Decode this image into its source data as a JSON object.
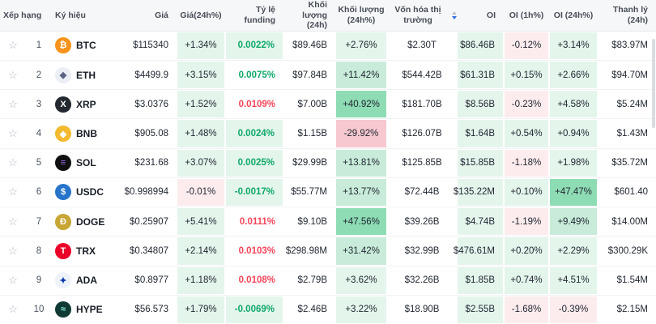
{
  "header": {
    "columns": [
      "Xếp hạng",
      "Ký hiệu",
      "Giá",
      "Giá(24h%)",
      "Tỷ lệ funding",
      "Khối lượng (24h)",
      "Khối lượng (24h%)",
      "Vốn hóa thị trường",
      "OI",
      "OI (1h%)",
      "OI (24h%)",
      "Thanh lý (24h)"
    ],
    "sorted_column": "Vốn hóa thị trường",
    "sort_direction": "desc"
  },
  "icons": {
    "favorite_star": "☆"
  },
  "colors": {
    "green_text": "#0fa968",
    "red_text": "#f4455a",
    "bg_g1": "#e4f5ec",
    "bg_g2": "#c8ecd9",
    "bg_g3": "#8edcb4",
    "bg_r1": "#fdecee",
    "bg_r2": "#f7c8cf",
    "sort_accent": "#2f6fed"
  },
  "rows": [
    {
      "rank": "1",
      "symbol": "BTC",
      "icon": {
        "glyph": "₿",
        "bg": "#f7931a",
        "fg": "#ffffff"
      },
      "cells": {
        "price": {
          "v": "$115340"
        },
        "price_24h": {
          "v": "+1.34%",
          "bg": "g1"
        },
        "funding": {
          "v": "0.0022%",
          "fg": "green",
          "bg": "g1"
        },
        "vol_24h": {
          "v": "$89.46B"
        },
        "vol_24h_pct": {
          "v": "+2.76%",
          "bg": "g1"
        },
        "mcap": {
          "v": "$2.30T"
        },
        "oi": {
          "v": "$86.46B",
          "bg": "g1"
        },
        "oi_1h_pct": {
          "v": "-0.12%",
          "bg": "r1"
        },
        "oi_24h_pct": {
          "v": "+3.14%",
          "bg": "g1"
        },
        "liq": {
          "v": "$83.97M"
        }
      }
    },
    {
      "rank": "2",
      "symbol": "ETH",
      "icon": {
        "glyph": "◆",
        "bg": "#eceef5",
        "fg": "#5c6587"
      },
      "cells": {
        "price": {
          "v": "$4499.9"
        },
        "price_24h": {
          "v": "+3.15%",
          "bg": "g1"
        },
        "funding": {
          "v": "0.0075%",
          "fg": "green"
        },
        "vol_24h": {
          "v": "$97.84B"
        },
        "vol_24h_pct": {
          "v": "+11.42%",
          "bg": "g2"
        },
        "mcap": {
          "v": "$544.42B"
        },
        "oi": {
          "v": "$61.31B",
          "bg": "g1"
        },
        "oi_1h_pct": {
          "v": "+0.15%",
          "bg": "g1"
        },
        "oi_24h_pct": {
          "v": "+2.66%",
          "bg": "g1"
        },
        "liq": {
          "v": "$94.70M"
        }
      }
    },
    {
      "rank": "3",
      "symbol": "XRP",
      "icon": {
        "glyph": "X",
        "bg": "#23292f",
        "fg": "#ffffff"
      },
      "cells": {
        "price": {
          "v": "$3.0376"
        },
        "price_24h": {
          "v": "+1.52%",
          "bg": "g1"
        },
        "funding": {
          "v": "0.0109%",
          "fg": "red"
        },
        "vol_24h": {
          "v": "$7.00B"
        },
        "vol_24h_pct": {
          "v": "+40.92%",
          "bg": "g3"
        },
        "mcap": {
          "v": "$181.70B"
        },
        "oi": {
          "v": "$8.56B",
          "bg": "g1"
        },
        "oi_1h_pct": {
          "v": "-0.23%",
          "bg": "r1"
        },
        "oi_24h_pct": {
          "v": "+4.58%",
          "bg": "g1"
        },
        "liq": {
          "v": "$5.24M"
        }
      }
    },
    {
      "rank": "4",
      "symbol": "BNB",
      "icon": {
        "glyph": "◆",
        "bg": "#f3ba2f",
        "fg": "#ffffff"
      },
      "cells": {
        "price": {
          "v": "$905.08"
        },
        "price_24h": {
          "v": "+1.48%",
          "bg": "g1"
        },
        "funding": {
          "v": "0.0024%",
          "fg": "green",
          "bg": "g1"
        },
        "vol_24h": {
          "v": "$1.15B"
        },
        "vol_24h_pct": {
          "v": "-29.92%",
          "bg": "r2"
        },
        "mcap": {
          "v": "$126.07B"
        },
        "oi": {
          "v": "$1.64B",
          "bg": "g1"
        },
        "oi_1h_pct": {
          "v": "+0.54%",
          "bg": "g1"
        },
        "oi_24h_pct": {
          "v": "+0.94%",
          "bg": "g1"
        },
        "liq": {
          "v": "$1.43M"
        }
      }
    },
    {
      "rank": "5",
      "symbol": "SOL",
      "icon": {
        "glyph": "≡",
        "bg": "#101010",
        "fg": "#9b6df2"
      },
      "cells": {
        "price": {
          "v": "$231.68"
        },
        "price_24h": {
          "v": "+3.07%",
          "bg": "g1"
        },
        "funding": {
          "v": "0.0025%",
          "fg": "green",
          "bg": "g1"
        },
        "vol_24h": {
          "v": "$29.99B"
        },
        "vol_24h_pct": {
          "v": "+13.81%",
          "bg": "g2"
        },
        "mcap": {
          "v": "$125.85B"
        },
        "oi": {
          "v": "$15.85B",
          "bg": "g1"
        },
        "oi_1h_pct": {
          "v": "-1.18%",
          "bg": "r1"
        },
        "oi_24h_pct": {
          "v": "+1.98%",
          "bg": "g1"
        },
        "liq": {
          "v": "$35.72M"
        }
      }
    },
    {
      "rank": "6",
      "symbol": "USDC",
      "icon": {
        "glyph": "$",
        "bg": "#2775ca",
        "fg": "#ffffff"
      },
      "cells": {
        "price": {
          "v": "$0.998994"
        },
        "price_24h": {
          "v": "-0.01%",
          "bg": "r1"
        },
        "funding": {
          "v": "-0.0017%",
          "fg": "green",
          "bg": "g1"
        },
        "vol_24h": {
          "v": "$55.77M"
        },
        "vol_24h_pct": {
          "v": "+13.77%",
          "bg": "g2"
        },
        "mcap": {
          "v": "$72.44B"
        },
        "oi": {
          "v": "$135.22M",
          "bg": "g1"
        },
        "oi_1h_pct": {
          "v": "+0.10%",
          "bg": "g1"
        },
        "oi_24h_pct": {
          "v": "+47.47%",
          "bg": "g3"
        },
        "liq": {
          "v": "$601.40"
        }
      }
    },
    {
      "rank": "7",
      "symbol": "DOGE",
      "icon": {
        "glyph": "Ð",
        "bg": "#c8a634",
        "fg": "#ffffff"
      },
      "cells": {
        "price": {
          "v": "$0.25907"
        },
        "price_24h": {
          "v": "+5.41%",
          "bg": "g1"
        },
        "funding": {
          "v": "0.0111%",
          "fg": "red"
        },
        "vol_24h": {
          "v": "$9.10B"
        },
        "vol_24h_pct": {
          "v": "+47.56%",
          "bg": "g3"
        },
        "mcap": {
          "v": "$39.26B"
        },
        "oi": {
          "v": "$4.74B",
          "bg": "g1"
        },
        "oi_1h_pct": {
          "v": "-1.19%",
          "bg": "r1"
        },
        "oi_24h_pct": {
          "v": "+9.49%",
          "bg": "g2"
        },
        "liq": {
          "v": "$14.00M"
        }
      }
    },
    {
      "rank": "8",
      "symbol": "TRX",
      "icon": {
        "glyph": "T",
        "bg": "#eb0029",
        "fg": "#ffffff"
      },
      "cells": {
        "price": {
          "v": "$0.34807"
        },
        "price_24h": {
          "v": "+2.14%",
          "bg": "g1"
        },
        "funding": {
          "v": "0.0103%",
          "fg": "red"
        },
        "vol_24h": {
          "v": "$298.98M"
        },
        "vol_24h_pct": {
          "v": "+31.42%",
          "bg": "g2"
        },
        "mcap": {
          "v": "$32.99B"
        },
        "oi": {
          "v": "$476.61M",
          "bg": "g1"
        },
        "oi_1h_pct": {
          "v": "+0.20%",
          "bg": "g1"
        },
        "oi_24h_pct": {
          "v": "+2.29%",
          "bg": "g1"
        },
        "liq": {
          "v": "$300.29K"
        }
      }
    },
    {
      "rank": "9",
      "symbol": "ADA",
      "icon": {
        "glyph": "✦",
        "bg": "#eef2fa",
        "fg": "#0033ad"
      },
      "cells": {
        "price": {
          "v": "$0.8977"
        },
        "price_24h": {
          "v": "+1.18%",
          "bg": "g1"
        },
        "funding": {
          "v": "0.0108%",
          "fg": "red"
        },
        "vol_24h": {
          "v": "$2.79B"
        },
        "vol_24h_pct": {
          "v": "+3.62%",
          "bg": "g1"
        },
        "mcap": {
          "v": "$32.26B"
        },
        "oi": {
          "v": "$1.85B",
          "bg": "g1"
        },
        "oi_1h_pct": {
          "v": "+0.74%",
          "bg": "g1"
        },
        "oi_24h_pct": {
          "v": "+4.51%",
          "bg": "g1"
        },
        "liq": {
          "v": "$1.54M"
        }
      }
    },
    {
      "rank": "10",
      "symbol": "HYPE",
      "icon": {
        "glyph": "≈",
        "bg": "#0f3a33",
        "fg": "#8ef5dc"
      },
      "cells": {
        "price": {
          "v": "$56.573"
        },
        "price_24h": {
          "v": "+1.79%",
          "bg": "g1"
        },
        "funding": {
          "v": "-0.0069%",
          "fg": "green",
          "bg": "g1"
        },
        "vol_24h": {
          "v": "$2.46B"
        },
        "vol_24h_pct": {
          "v": "+3.22%",
          "bg": "g1"
        },
        "mcap": {
          "v": "$18.90B"
        },
        "oi": {
          "v": "$2.55B",
          "bg": "g1"
        },
        "oi_1h_pct": {
          "v": "-1.68%",
          "bg": "r1"
        },
        "oi_24h_pct": {
          "v": "-0.39%",
          "bg": "r1"
        },
        "liq": {
          "v": "$2.15M"
        }
      }
    }
  ]
}
